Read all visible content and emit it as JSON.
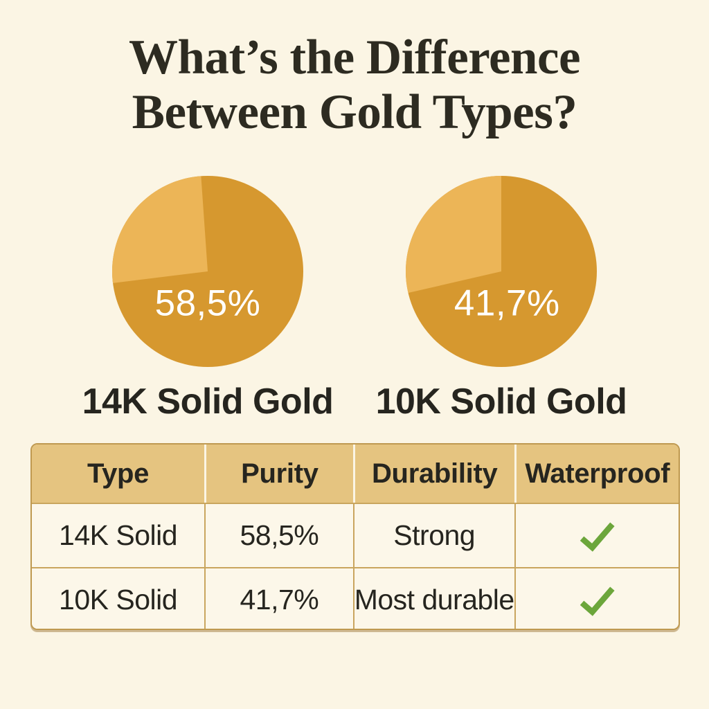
{
  "theme": {
    "background": "#FBF5E4",
    "title_color": "#2D2B21",
    "text_color": "#26251F",
    "percent_color": "#FFFFFF",
    "table_border": "#BF9950",
    "table_border_light": "#C9A55E",
    "table_header_bg": "#E5C480",
    "table_cell_bg": "#FCF7E9",
    "check_color": "#6CA63B"
  },
  "title": {
    "line1": "What’s the Difference",
    "line2": "Between Gold Types?"
  },
  "chart_data": [
    {
      "type": "pie",
      "title": "14K Solid Gold",
      "value": 58.5,
      "value_label": "58,5%",
      "colors": {
        "dark": "#D6982F",
        "light": "#ECB557"
      },
      "slices": [
        {
          "name": "dark-gold-slice",
          "visual_fraction": 0.742,
          "color": "#D6982F"
        },
        {
          "name": "light-gold-slice",
          "visual_fraction": 0.258,
          "color": "#ECB557"
        }
      ],
      "visual": {
        "light_start_deg": 263,
        "light_end_deg": 356
      },
      "legend": "none",
      "label_position": "inside-below-center"
    },
    {
      "type": "pie",
      "title": "10K Solid Gold",
      "value": 41.7,
      "value_label": "41,7%",
      "colors": {
        "dark": "#D6982F",
        "light": "#ECB557"
      },
      "slices": [
        {
          "name": "dark-gold-slice",
          "visual_fraction": 0.714,
          "color": "#D6982F"
        },
        {
          "name": "light-gold-slice",
          "visual_fraction": 0.286,
          "color": "#ECB557"
        }
      ],
      "visual": {
        "light_start_deg": 257,
        "light_end_deg": 360
      },
      "legend": "none",
      "label_position": "inside-below-center"
    }
  ],
  "table": {
    "headers": [
      "Type",
      "Purity",
      "Durability",
      "Waterproof"
    ],
    "rows": [
      {
        "type": "14K Solid",
        "purity": "58,5%",
        "durability": "Strong",
        "waterproof": "check"
      },
      {
        "type": "10K Solid",
        "purity": "41,7%",
        "durability": "Most durable",
        "waterproof": "check"
      }
    ]
  }
}
